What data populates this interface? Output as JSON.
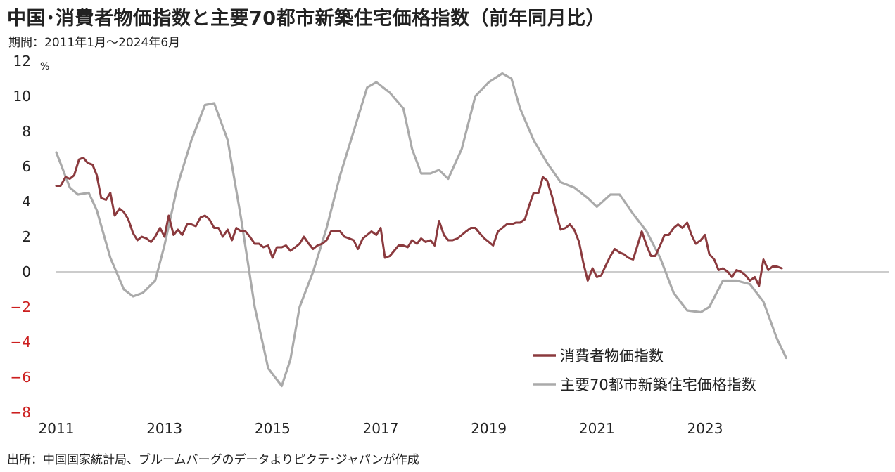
{
  "title": "中国･消費者物価指数と主要70都市新築住宅価格指数（前年同月比）",
  "period": "期間：2011年1月～2024年6月",
  "source": "出所：中国国家統計局、ブルームバーグのデータよりピクテ･ジャパンが作成",
  "colors": {
    "cpi": "#8b3a3e",
    "housing": "#aaaaaa",
    "negative_tick": "#cc1f1f",
    "zero_line": "#999999"
  },
  "chart_data": {
    "type": "line",
    "title": "中国･消費者物価指数と主要70都市新築住宅価格指数（前年同月比）",
    "subtitle": "期間：2011年1月～2024年6月",
    "ylabel": "%",
    "ylim": [
      -8,
      12
    ],
    "xlim": [
      2011.0,
      2024.6
    ],
    "yticks": [
      12,
      10,
      8,
      6,
      4,
      2,
      0,
      -2,
      -4,
      -6,
      -8
    ],
    "ytick_labels": [
      "12",
      "10",
      "8",
      "6",
      "4",
      "2",
      "0",
      "−2",
      "−4",
      "−6",
      "−8"
    ],
    "xticks": [
      2011,
      2013,
      2015,
      2017,
      2019,
      2021,
      2023
    ],
    "xtick_labels": [
      "2011",
      "2013",
      "2015",
      "2017",
      "2019",
      "2021",
      "2023"
    ],
    "grid": false,
    "legend": "bottom-right",
    "series": [
      {
        "name": "消費者物価指数",
        "key": "cpi",
        "points": [
          [
            2011.0,
            4.9
          ],
          [
            2011.08,
            4.9
          ],
          [
            2011.17,
            5.4
          ],
          [
            2011.25,
            5.3
          ],
          [
            2011.33,
            5.5
          ],
          [
            2011.42,
            6.4
          ],
          [
            2011.5,
            6.5
          ],
          [
            2011.58,
            6.2
          ],
          [
            2011.67,
            6.1
          ],
          [
            2011.75,
            5.5
          ],
          [
            2011.83,
            4.2
          ],
          [
            2011.92,
            4.1
          ],
          [
            2012.0,
            4.5
          ],
          [
            2012.08,
            3.2
          ],
          [
            2012.17,
            3.6
          ],
          [
            2012.25,
            3.4
          ],
          [
            2012.33,
            3.0
          ],
          [
            2012.42,
            2.2
          ],
          [
            2012.5,
            1.8
          ],
          [
            2012.58,
            2.0
          ],
          [
            2012.67,
            1.9
          ],
          [
            2012.75,
            1.7
          ],
          [
            2012.83,
            2.0
          ],
          [
            2012.92,
            2.5
          ],
          [
            2013.0,
            2.0
          ],
          [
            2013.08,
            3.2
          ],
          [
            2013.17,
            2.1
          ],
          [
            2013.25,
            2.4
          ],
          [
            2013.33,
            2.1
          ],
          [
            2013.42,
            2.7
          ],
          [
            2013.5,
            2.7
          ],
          [
            2013.58,
            2.6
          ],
          [
            2013.67,
            3.1
          ],
          [
            2013.75,
            3.2
          ],
          [
            2013.83,
            3.0
          ],
          [
            2013.92,
            2.5
          ],
          [
            2014.0,
            2.5
          ],
          [
            2014.08,
            2.0
          ],
          [
            2014.17,
            2.4
          ],
          [
            2014.25,
            1.8
          ],
          [
            2014.33,
            2.5
          ],
          [
            2014.42,
            2.3
          ],
          [
            2014.5,
            2.3
          ],
          [
            2014.58,
            2.0
          ],
          [
            2014.67,
            1.6
          ],
          [
            2014.75,
            1.6
          ],
          [
            2014.83,
            1.4
          ],
          [
            2014.92,
            1.5
          ],
          [
            2015.0,
            0.8
          ],
          [
            2015.08,
            1.4
          ],
          [
            2015.17,
            1.4
          ],
          [
            2015.25,
            1.5
          ],
          [
            2015.33,
            1.2
          ],
          [
            2015.42,
            1.4
          ],
          [
            2015.5,
            1.6
          ],
          [
            2015.58,
            2.0
          ],
          [
            2015.67,
            1.6
          ],
          [
            2015.75,
            1.3
          ],
          [
            2015.83,
            1.5
          ],
          [
            2015.92,
            1.6
          ],
          [
            2016.0,
            1.8
          ],
          [
            2016.08,
            2.3
          ],
          [
            2016.17,
            2.3
          ],
          [
            2016.25,
            2.3
          ],
          [
            2016.33,
            2.0
          ],
          [
            2016.42,
            1.9
          ],
          [
            2016.5,
            1.8
          ],
          [
            2016.58,
            1.3
          ],
          [
            2016.67,
            1.9
          ],
          [
            2016.75,
            2.1
          ],
          [
            2016.83,
            2.3
          ],
          [
            2016.92,
            2.1
          ],
          [
            2017.0,
            2.5
          ],
          [
            2017.08,
            0.8
          ],
          [
            2017.17,
            0.9
          ],
          [
            2017.25,
            1.2
          ],
          [
            2017.33,
            1.5
          ],
          [
            2017.42,
            1.5
          ],
          [
            2017.5,
            1.4
          ],
          [
            2017.58,
            1.8
          ],
          [
            2017.67,
            1.6
          ],
          [
            2017.75,
            1.9
          ],
          [
            2017.83,
            1.7
          ],
          [
            2017.92,
            1.8
          ],
          [
            2018.0,
            1.5
          ],
          [
            2018.08,
            2.9
          ],
          [
            2018.17,
            2.1
          ],
          [
            2018.25,
            1.8
          ],
          [
            2018.33,
            1.8
          ],
          [
            2018.42,
            1.9
          ],
          [
            2018.5,
            2.1
          ],
          [
            2018.58,
            2.3
          ],
          [
            2018.67,
            2.5
          ],
          [
            2018.75,
            2.5
          ],
          [
            2018.83,
            2.2
          ],
          [
            2018.92,
            1.9
          ],
          [
            2019.0,
            1.7
          ],
          [
            2019.08,
            1.5
          ],
          [
            2019.17,
            2.3
          ],
          [
            2019.25,
            2.5
          ],
          [
            2019.33,
            2.7
          ],
          [
            2019.42,
            2.7
          ],
          [
            2019.5,
            2.8
          ],
          [
            2019.58,
            2.8
          ],
          [
            2019.67,
            3.0
          ],
          [
            2019.75,
            3.8
          ],
          [
            2019.83,
            4.5
          ],
          [
            2019.92,
            4.5
          ],
          [
            2020.0,
            5.4
          ],
          [
            2020.08,
            5.2
          ],
          [
            2020.17,
            4.3
          ],
          [
            2020.25,
            3.3
          ],
          [
            2020.33,
            2.4
          ],
          [
            2020.42,
            2.5
          ],
          [
            2020.5,
            2.7
          ],
          [
            2020.58,
            2.4
          ],
          [
            2020.67,
            1.7
          ],
          [
            2020.75,
            0.5
          ],
          [
            2020.83,
            -0.5
          ],
          [
            2020.92,
            0.2
          ],
          [
            2021.0,
            -0.3
          ],
          [
            2021.08,
            -0.2
          ],
          [
            2021.17,
            0.4
          ],
          [
            2021.25,
            0.9
          ],
          [
            2021.33,
            1.3
          ],
          [
            2021.42,
            1.1
          ],
          [
            2021.5,
            1.0
          ],
          [
            2021.58,
            0.8
          ],
          [
            2021.67,
            0.7
          ],
          [
            2021.75,
            1.5
          ],
          [
            2021.83,
            2.3
          ],
          [
            2021.92,
            1.5
          ],
          [
            2022.0,
            0.9
          ],
          [
            2022.08,
            0.9
          ],
          [
            2022.17,
            1.5
          ],
          [
            2022.25,
            2.1
          ],
          [
            2022.33,
            2.1
          ],
          [
            2022.42,
            2.5
          ],
          [
            2022.5,
            2.7
          ],
          [
            2022.58,
            2.5
          ],
          [
            2022.67,
            2.8
          ],
          [
            2022.75,
            2.1
          ],
          [
            2022.83,
            1.6
          ],
          [
            2022.92,
            1.8
          ],
          [
            2023.0,
            2.1
          ],
          [
            2023.08,
            1.0
          ],
          [
            2023.17,
            0.7
          ],
          [
            2023.25,
            0.1
          ],
          [
            2023.33,
            0.2
          ],
          [
            2023.42,
            0.0
          ],
          [
            2023.5,
            -0.3
          ],
          [
            2023.58,
            0.1
          ],
          [
            2023.67,
            0.0
          ],
          [
            2023.75,
            -0.2
          ],
          [
            2023.83,
            -0.5
          ],
          [
            2023.92,
            -0.3
          ],
          [
            2024.0,
            -0.8
          ],
          [
            2024.08,
            0.7
          ],
          [
            2024.17,
            0.1
          ],
          [
            2024.25,
            0.3
          ],
          [
            2024.33,
            0.3
          ],
          [
            2024.42,
            0.2
          ]
        ]
      },
      {
        "name": "主要70都市新築住宅価格指数",
        "key": "housing",
        "points": [
          [
            2011.0,
            6.8
          ],
          [
            2011.25,
            4.8
          ],
          [
            2011.4,
            4.4
          ],
          [
            2011.6,
            4.5
          ],
          [
            2011.75,
            3.5
          ],
          [
            2012.0,
            0.8
          ],
          [
            2012.25,
            -1.0
          ],
          [
            2012.42,
            -1.4
          ],
          [
            2012.6,
            -1.2
          ],
          [
            2012.83,
            -0.5
          ],
          [
            2013.0,
            1.5
          ],
          [
            2013.25,
            5.0
          ],
          [
            2013.5,
            7.5
          ],
          [
            2013.75,
            9.5
          ],
          [
            2013.92,
            9.6
          ],
          [
            2014.17,
            7.5
          ],
          [
            2014.42,
            3.0
          ],
          [
            2014.67,
            -2.0
          ],
          [
            2014.92,
            -5.5
          ],
          [
            2015.17,
            -6.5
          ],
          [
            2015.33,
            -5.0
          ],
          [
            2015.5,
            -2.0
          ],
          [
            2015.75,
            0.0
          ],
          [
            2016.0,
            2.5
          ],
          [
            2016.25,
            5.5
          ],
          [
            2016.5,
            8.0
          ],
          [
            2016.75,
            10.5
          ],
          [
            2016.92,
            10.8
          ],
          [
            2017.17,
            10.2
          ],
          [
            2017.42,
            9.3
          ],
          [
            2017.58,
            7.0
          ],
          [
            2017.75,
            5.6
          ],
          [
            2017.92,
            5.6
          ],
          [
            2018.08,
            5.8
          ],
          [
            2018.25,
            5.3
          ],
          [
            2018.5,
            7.0
          ],
          [
            2018.75,
            10.0
          ],
          [
            2019.0,
            10.8
          ],
          [
            2019.25,
            11.3
          ],
          [
            2019.42,
            11.0
          ],
          [
            2019.58,
            9.3
          ],
          [
            2019.83,
            7.5
          ],
          [
            2020.08,
            6.2
          ],
          [
            2020.33,
            5.1
          ],
          [
            2020.58,
            4.8
          ],
          [
            2020.83,
            4.2
          ],
          [
            2021.0,
            3.7
          ],
          [
            2021.25,
            4.4
          ],
          [
            2021.42,
            4.4
          ],
          [
            2021.67,
            3.3
          ],
          [
            2021.92,
            2.3
          ],
          [
            2022.17,
            0.8
          ],
          [
            2022.42,
            -1.2
          ],
          [
            2022.67,
            -2.2
          ],
          [
            2022.92,
            -2.3
          ],
          [
            2023.08,
            -2.0
          ],
          [
            2023.33,
            -0.5
          ],
          [
            2023.58,
            -0.5
          ],
          [
            2023.83,
            -0.7
          ],
          [
            2024.08,
            -1.7
          ],
          [
            2024.33,
            -3.8
          ],
          [
            2024.5,
            -4.9
          ]
        ]
      }
    ]
  }
}
